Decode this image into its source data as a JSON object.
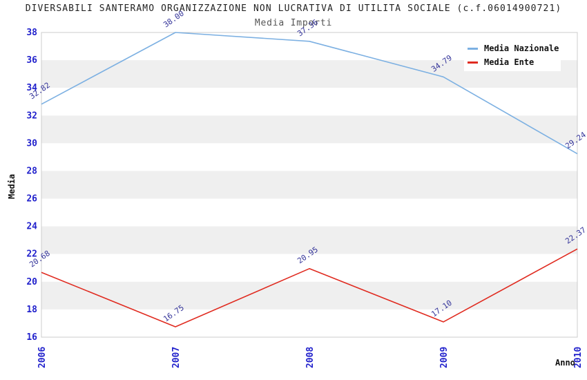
{
  "header": {
    "title": "DIVERSABILI SANTERAMO ORGANIZZAZIONE NON LUCRATIVA DI UTILITA SOCIALE (c.f.06014900721)",
    "subtitle": "Media Importi"
  },
  "chart_data": {
    "type": "line",
    "title": "DIVERSABILI SANTERAMO ORGANIZZAZIONE NON LUCRATIVA DI UTILITA SOCIALE (c.f.06014900721)",
    "subtitle": "Media Importi",
    "xlabel": "Anno",
    "ylabel": "Media",
    "categories": [
      "2006",
      "2007",
      "2008",
      "2009",
      "2010"
    ],
    "series": [
      {
        "name": "Media Nazionale",
        "color": "#7CB0E2",
        "values": [
          32.82,
          38.0,
          37.36,
          34.79,
          29.24
        ]
      },
      {
        "name": "Media Ente",
        "color": "#E02B20",
        "values": [
          20.68,
          16.75,
          20.95,
          17.1,
          22.37
        ]
      }
    ],
    "ylim": [
      16,
      38
    ],
    "ytick_step": 2,
    "grid": "alternating-horizontal-bands",
    "legend_position": "top-right",
    "colors": {
      "tick_label": "#2222cc",
      "data_label": "#333399",
      "band_gray": "#efefef",
      "band_white": "#ffffff",
      "plot_border": "#cccccc",
      "title": "#222222",
      "subtitle": "#555555"
    }
  }
}
